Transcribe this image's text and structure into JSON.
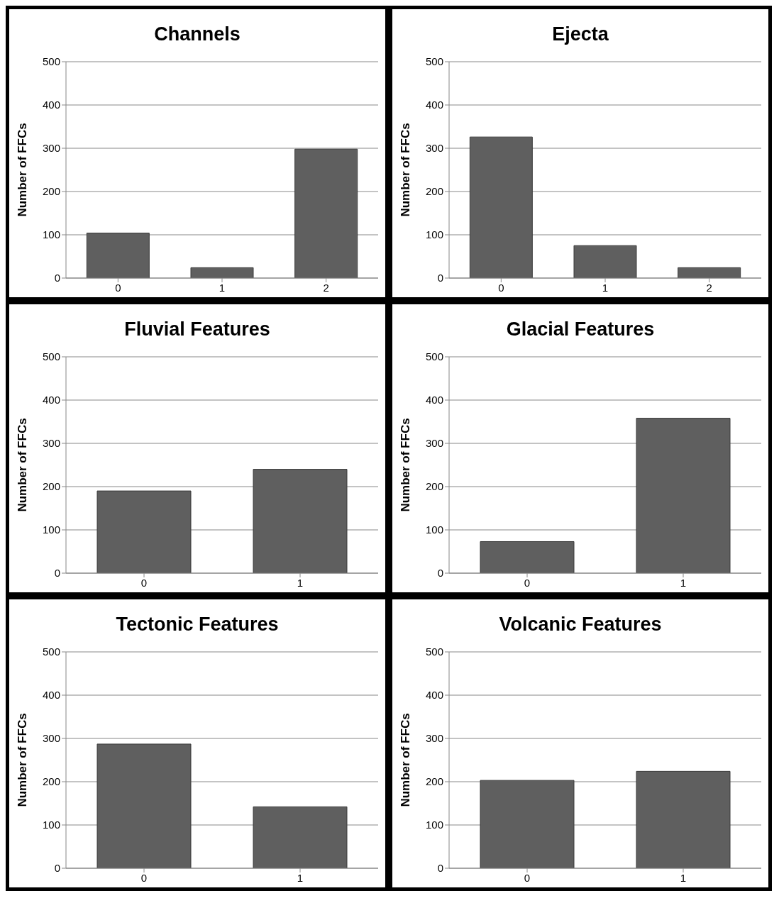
{
  "chart_data": [
    {
      "type": "bar",
      "title": "Channels",
      "ylabel": "Number of FFCs",
      "categories": [
        "0",
        "1",
        "2"
      ],
      "values": [
        104,
        24,
        298
      ],
      "color": "#5f5f5f",
      "ylim": [
        0,
        500
      ],
      "yticks": [
        0,
        100,
        200,
        300,
        400,
        500
      ],
      "grid": "y"
    },
    {
      "type": "bar",
      "title": "Ejecta",
      "ylabel": "Number of FFCs",
      "categories": [
        "0",
        "1",
        "2"
      ],
      "values": [
        326,
        75,
        24
      ],
      "color": "#5f5f5f",
      "ylim": [
        0,
        500
      ],
      "yticks": [
        0,
        100,
        200,
        300,
        400,
        500
      ],
      "grid": "y"
    },
    {
      "type": "bar",
      "title": "Fluvial Features",
      "ylabel": "Number of FFCs",
      "categories": [
        "0",
        "1"
      ],
      "values": [
        190,
        240
      ],
      "color": "#5f5f5f",
      "ylim": [
        0,
        500
      ],
      "yticks": [
        0,
        100,
        200,
        300,
        400,
        500
      ],
      "grid": "y"
    },
    {
      "type": "bar",
      "title": "Glacial Features",
      "ylabel": "Number of FFCs",
      "categories": [
        "0",
        "1"
      ],
      "values": [
        73,
        358
      ],
      "color": "#5f5f5f",
      "ylim": [
        0,
        500
      ],
      "yticks": [
        0,
        100,
        200,
        300,
        400,
        500
      ],
      "grid": "y"
    },
    {
      "type": "bar",
      "title": "Tectonic Features",
      "ylabel": "Number of FFCs",
      "categories": [
        "0",
        "1"
      ],
      "values": [
        287,
        142
      ],
      "color": "#5f5f5f",
      "ylim": [
        0,
        500
      ],
      "yticks": [
        0,
        100,
        200,
        300,
        400,
        500
      ],
      "grid": "y"
    },
    {
      "type": "bar",
      "title": "Volcanic Features",
      "ylabel": "Number of FFCs",
      "categories": [
        "0",
        "1"
      ],
      "values": [
        203,
        224
      ],
      "color": "#5f5f5f",
      "ylim": [
        0,
        500
      ],
      "yticks": [
        0,
        100,
        200,
        300,
        400,
        500
      ],
      "grid": "y"
    }
  ]
}
